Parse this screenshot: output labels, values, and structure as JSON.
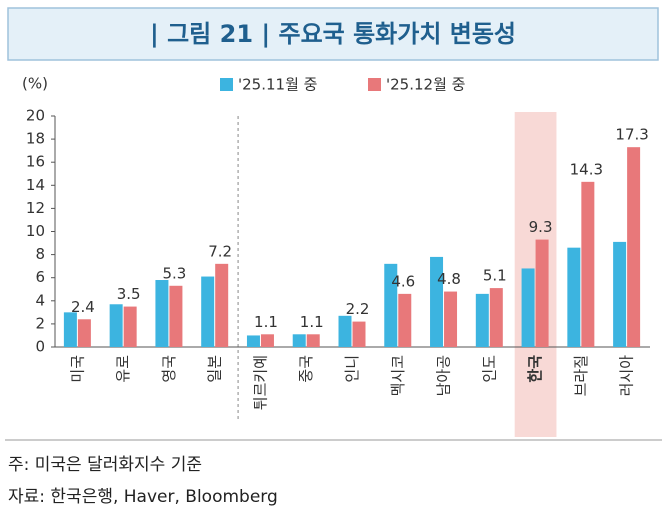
{
  "chart_data": {
    "type": "bar",
    "title": "| 그림 21 | 주요국 통화가치 변동성",
    "y_label": "(%)",
    "categories": [
      "미국",
      "유로",
      "영국",
      "일본",
      "튀르키예",
      "중국",
      "인니",
      "멕시코",
      "남아공",
      "인도",
      "한국",
      "브라질",
      "러시아"
    ],
    "series": [
      {
        "name": "'25.11월 중",
        "color": "#3cb4e0",
        "values": [
          3.0,
          3.7,
          5.8,
          6.1,
          1.0,
          1.1,
          2.7,
          7.2,
          7.8,
          4.6,
          6.8,
          8.6,
          9.1
        ]
      },
      {
        "name": "'25.12월 중",
        "color": "#e8787a",
        "values": [
          2.4,
          3.5,
          5.3,
          7.2,
          1.1,
          1.1,
          2.2,
          4.6,
          4.8,
          5.1,
          9.3,
          14.3,
          17.3
        ],
        "show_labels": true
      }
    ],
    "ylim": [
      0,
      20
    ],
    "yticks": [
      0,
      2,
      4,
      6,
      8,
      10,
      12,
      14,
      16,
      18,
      20
    ],
    "grid": false,
    "legend": "top",
    "highlight_index": 10,
    "separator_after": 3,
    "notes": [
      "주: 미국은 달러화지수 기준",
      "자료: 한국은행, Haver, Bloomberg"
    ]
  }
}
